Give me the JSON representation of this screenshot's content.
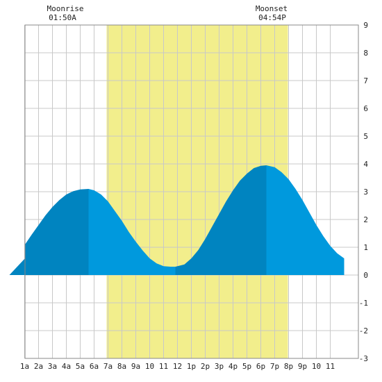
{
  "chart_data": {
    "type": "area",
    "moonrise": {
      "label": "Moonrise",
      "time": "01:50A"
    },
    "moonset": {
      "label": "Moonset",
      "time": "04:54P"
    },
    "x_ticks": [
      "1a",
      "2a",
      "3a",
      "4a",
      "5a",
      "6a",
      "7a",
      "8a",
      "9a",
      "10",
      "11",
      "12",
      "1p",
      "2p",
      "3p",
      "4p",
      "5p",
      "6p",
      "7p",
      "8p",
      "9p",
      "10",
      "11"
    ],
    "x_tick_hours": [
      1,
      2,
      3,
      4,
      5,
      6,
      7,
      8,
      9,
      10,
      11,
      12,
      13,
      14,
      15,
      16,
      17,
      18,
      19,
      20,
      21,
      22,
      23
    ],
    "y_ticks": [
      9,
      8,
      7,
      6,
      5,
      4,
      3,
      2,
      1,
      0,
      -1,
      -2,
      -3
    ],
    "xlim": [
      -0.1,
      24.0
    ],
    "ylim": [
      -3,
      9
    ],
    "grid": true,
    "daylight": {
      "start_hour": 6.9,
      "end_hour": 19.95
    },
    "tide_extremes": [
      {
        "hour": 5.6,
        "height": 3.1,
        "type": "high"
      },
      {
        "hour": 11.85,
        "height": 0.3,
        "type": "low"
      },
      {
        "hour": 18.4,
        "height": 3.95,
        "type": "high"
      }
    ],
    "series": [
      {
        "x": [
          -0.1,
          0.5,
          1,
          1.5,
          2,
          2.5,
          3,
          3.5,
          4,
          4.5,
          5,
          5.6
        ],
        "y": [
          0.6,
          0.8,
          1.1,
          1.45,
          1.8,
          2.15,
          2.45,
          2.7,
          2.9,
          3.02,
          3.08,
          3.1
        ]
      },
      {
        "x": [
          5.6,
          6,
          6.5,
          7,
          7.5,
          8,
          8.5,
          9,
          9.5,
          10,
          10.5,
          11,
          11.5,
          11.85
        ],
        "y": [
          3.1,
          3.05,
          2.9,
          2.65,
          2.3,
          1.95,
          1.55,
          1.2,
          0.88,
          0.6,
          0.42,
          0.32,
          0.3,
          0.3
        ]
      },
      {
        "x": [
          11.85,
          12.5,
          13,
          13.5,
          14,
          14.5,
          15,
          15.5,
          16,
          16.5,
          17,
          17.5,
          18,
          18.4
        ],
        "y": [
          0.3,
          0.38,
          0.6,
          0.9,
          1.3,
          1.75,
          2.2,
          2.65,
          3.05,
          3.4,
          3.65,
          3.85,
          3.93,
          3.95
        ]
      },
      {
        "x": [
          18.4,
          19,
          19.5,
          20,
          20.5,
          21,
          21.5,
          22,
          22.5,
          23,
          23.5,
          24.0
        ],
        "y": [
          3.95,
          3.88,
          3.7,
          3.45,
          3.1,
          2.7,
          2.25,
          1.8,
          1.4,
          1.05,
          0.78,
          0.6
        ]
      }
    ],
    "colors": {
      "daylight": "#f2ee8c",
      "tide_dark": "#0084c0",
      "tide_light": "#0099dd",
      "grid": "#c8c8c8",
      "frame": "#888888"
    }
  }
}
